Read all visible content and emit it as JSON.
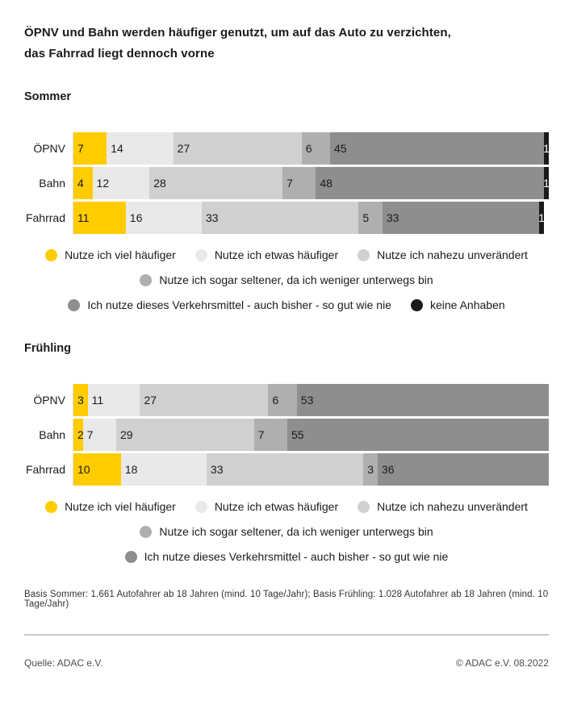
{
  "title_line1": "ÖPNV und Bahn werden häufiger genutzt, um auf das Auto zu verzichten,",
  "title_line2": "das Fahrrad liegt dennoch vorne",
  "colors": {
    "accent_yellow": "#FFCC00",
    "gray_lightest": "#E9E9E9",
    "gray_light": "#D0D0D0",
    "gray_medium": "#AFAFAF",
    "gray_dark": "#8E8E8E",
    "black": "#1A1A1A",
    "divider": "#C9C9C9"
  },
  "chart_data": [
    {
      "type": "bar",
      "orientation": "horizontal",
      "stacked": true,
      "title": "Sommer",
      "xlim": [
        0,
        100
      ],
      "unit": "percent",
      "grid": false,
      "legend_position": "bottom-center",
      "categories": [
        "ÖPNV",
        "Bahn",
        "Fahrrad"
      ],
      "series": [
        {
          "name": "Nutze ich viel häufiger",
          "color": "#FFCC00",
          "values": [
            7,
            4,
            11
          ]
        },
        {
          "name": "Nutze ich etwas häufiger",
          "color": "#E9E9E9",
          "values": [
            14,
            12,
            16
          ]
        },
        {
          "name": "Nutze ich nahezu unverändert",
          "color": "#D0D0D0",
          "values": [
            27,
            28,
            33
          ]
        },
        {
          "name": "Nutze ich sogar seltener, da ich weniger unterwegs bin",
          "color": "#AFAFAF",
          "values": [
            6,
            7,
            5
          ]
        },
        {
          "name": "Ich nutze dieses Verkehrsmittel - auch bisher - so gut wie nie",
          "color": "#8E8E8E",
          "values": [
            45,
            48,
            33
          ]
        },
        {
          "name": "keine Anhaben",
          "color": "#1A1A1A",
          "text_color": "#FFFFFF",
          "values": [
            1,
            1,
            1
          ]
        }
      ]
    },
    {
      "type": "bar",
      "orientation": "horizontal",
      "stacked": true,
      "title": "Frühling",
      "xlim": [
        0,
        100
      ],
      "unit": "percent",
      "grid": false,
      "legend_position": "bottom-center",
      "categories": [
        "ÖPNV",
        "Bahn",
        "Fahrrad"
      ],
      "series": [
        {
          "name": "Nutze ich viel häufiger",
          "color": "#FFCC00",
          "values": [
            3,
            2,
            10
          ]
        },
        {
          "name": "Nutze ich etwas häufiger",
          "color": "#E9E9E9",
          "values": [
            11,
            7,
            18
          ]
        },
        {
          "name": "Nutze ich nahezu unverändert",
          "color": "#D0D0D0",
          "values": [
            27,
            29,
            33
          ]
        },
        {
          "name": "Nutze ich sogar seltener, da ich weniger unterwegs bin",
          "color": "#AFAFAF",
          "values": [
            6,
            7,
            3
          ]
        },
        {
          "name": "Ich nutze dieses Verkehrsmittel - auch bisher - so gut wie nie",
          "color": "#8E8E8E",
          "values": [
            53,
            55,
            36
          ]
        }
      ]
    }
  ],
  "footnote": "Basis Sommer: 1.661 Autofahrer ab 18 Jahren (mind. 10 Tage/Jahr); Basis Frühling: 1.028 Autofahrer ab 18 Jahren (mind. 10 Tage/Jahr)",
  "footer": {
    "source": "Quelle: ADAC e.V.",
    "copyright": "© ADAC e.V. 08.2022"
  }
}
